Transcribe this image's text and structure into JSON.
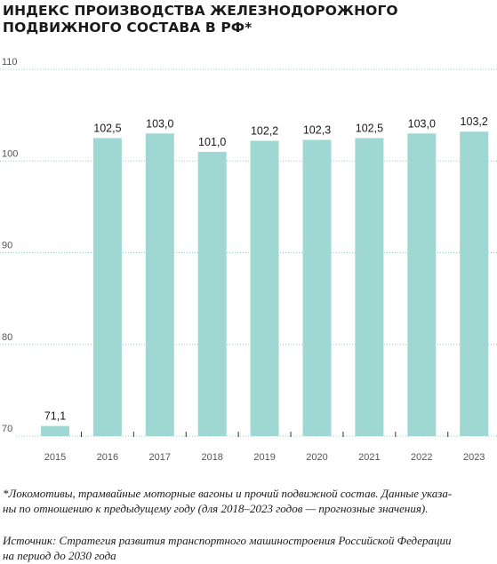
{
  "chart_data": {
    "type": "bar",
    "title": "ИНДЕКС ПРОИЗВОДСТВА ЖЕЛЕЗНОДОРОЖНОГО ПОДВИЖНОГО СОСТАВА В РФ*",
    "categories": [
      "2015",
      "2016",
      "2017",
      "2018",
      "2019",
      "2020",
      "2021",
      "2022",
      "2023"
    ],
    "values": [
      71.1,
      102.5,
      103.0,
      101.0,
      102.2,
      102.3,
      102.5,
      103.0,
      103.2
    ],
    "data_labels": [
      "71,1",
      "102,5",
      "103,0",
      "101,0",
      "102,2",
      "102,3",
      "102,5",
      "103,0",
      "103,2"
    ],
    "y_ticks": [
      "110",
      "100",
      "90",
      "80",
      "70"
    ],
    "ylim": [
      70,
      110
    ],
    "xlabel": "",
    "ylabel": "",
    "grid": true,
    "bar_color": "#9fd8d3",
    "grid_color": "#8fcfc8"
  },
  "footnote": {
    "line1": "*Локомотивы, трамвайные моторные вагоны и прочий подвижной состав. Данные указа-",
    "line2": "ны по отношению к предыдущему году (для 2018–2023 годов — прогнозные значения)."
  },
  "source": {
    "line1": "Источник: Стратегия развития транспортного машиностроения Российской Федерации",
    "line2": "на период до 2030 года"
  }
}
